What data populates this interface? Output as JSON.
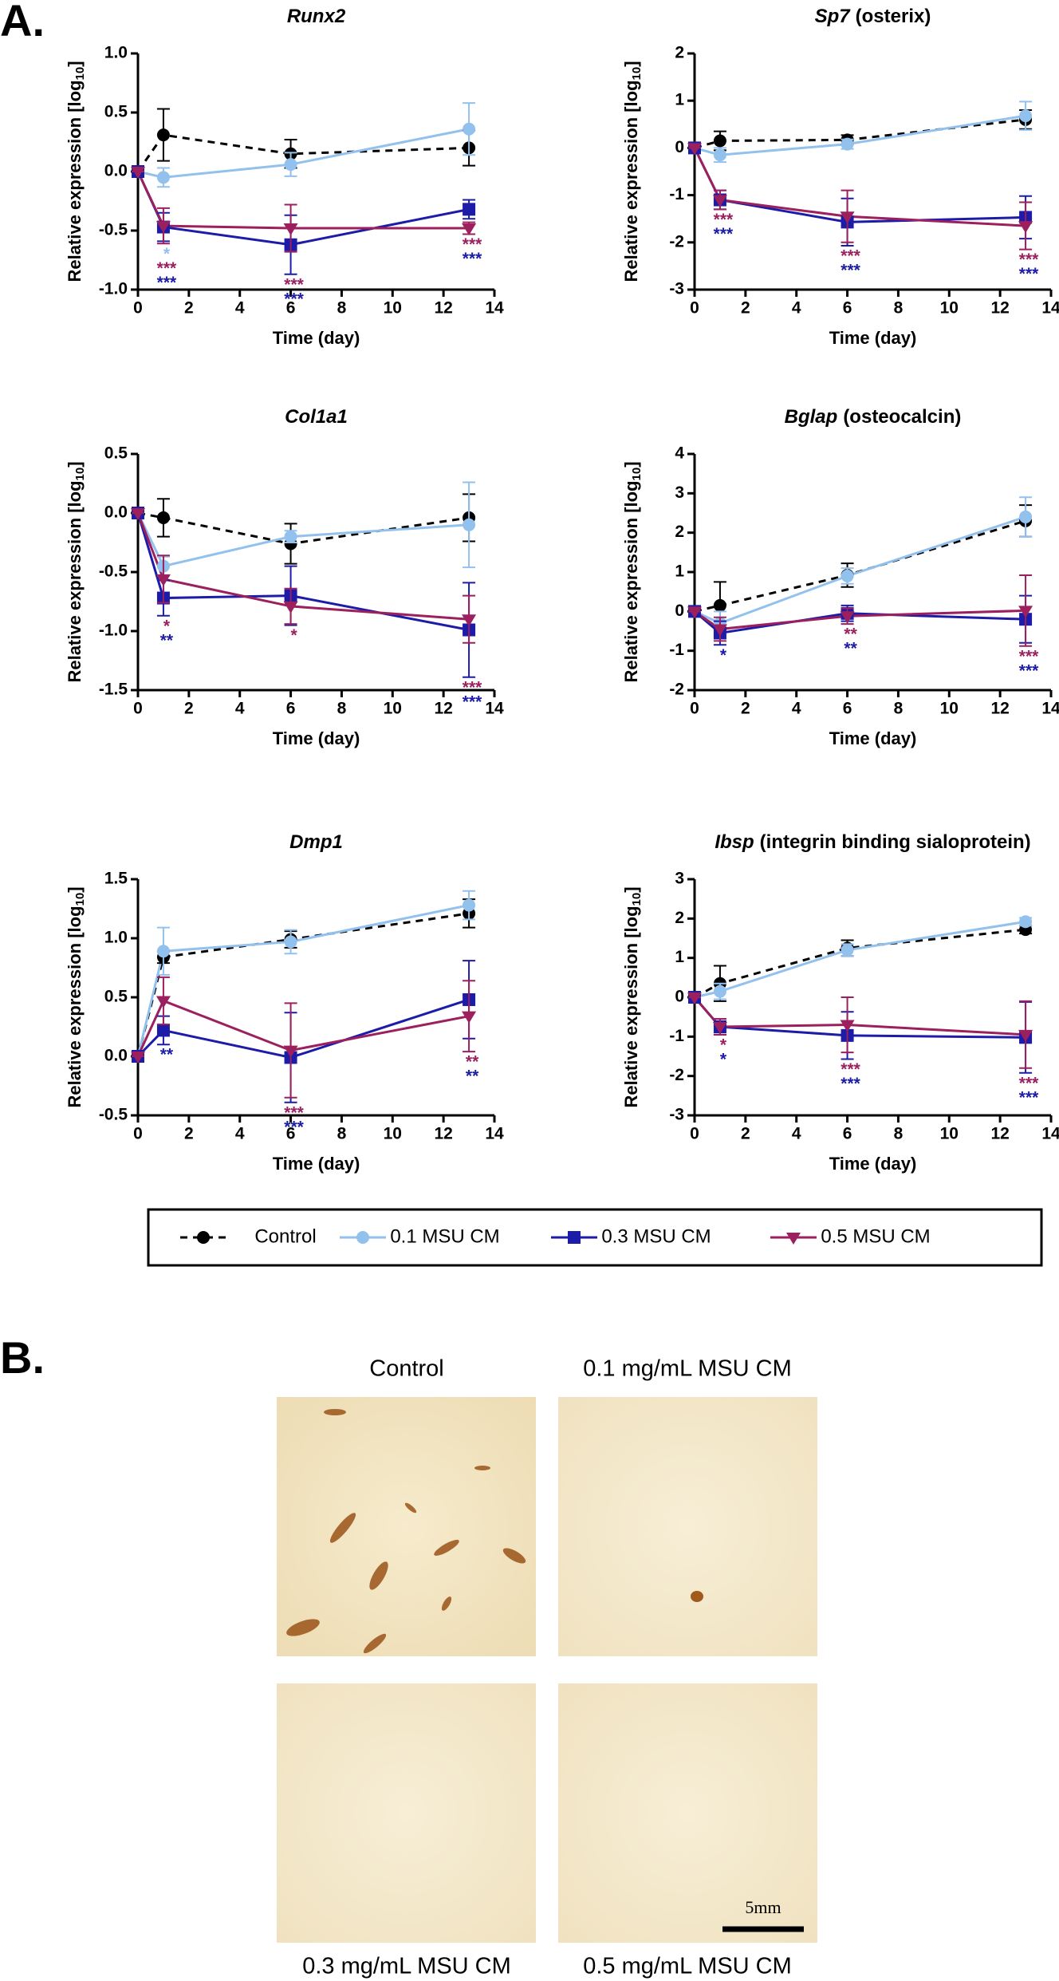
{
  "panel_labels": [
    "A.",
    "B."
  ],
  "chart_data": [
    {
      "type": "line",
      "title": "Runx2",
      "xlabel": "Time (day)",
      "ylabel": "Relative expression [log",
      "ylabel_sub": "10",
      "ylabel_end": "]",
      "x": [
        0,
        1,
        6,
        13
      ],
      "xlim": [
        0,
        14
      ],
      "xticks": [
        0,
        2,
        4,
        6,
        8,
        10,
        12,
        14
      ],
      "ylim": [
        -1,
        1
      ],
      "yticks": [
        {
          "value": -1,
          "label": "-1.0"
        },
        -0.5,
        {
          "value": 0,
          "label": "0.0"
        },
        0.5,
        {
          "value": 1,
          "label": "1.0"
        }
      ],
      "series": [
        {
          "name": "Control",
          "color": "#000000",
          "marker": "circle",
          "line_style": "dashed",
          "values": [
            0,
            0.31,
            0.15,
            0.2
          ],
          "errors": [
            0,
            0.22,
            0.12,
            0.15
          ],
          "significance": [
            null,
            null,
            null,
            null
          ]
        },
        {
          "name": "0.1 MSU CM",
          "color": "#92c1ee",
          "marker": "circle",
          "line_style": "solid",
          "values": [
            0,
            -0.05,
            0.06,
            0.36
          ],
          "errors": [
            0,
            0.08,
            0.1,
            0.22
          ],
          "significance": [
            null,
            "*",
            null,
            null
          ]
        },
        {
          "name": "0.3 MSU CM",
          "color": "#1c1ca8",
          "marker": "square",
          "line_style": "solid",
          "values": [
            0,
            -0.47,
            -0.62,
            -0.32
          ],
          "errors": [
            0,
            0.12,
            0.25,
            0.08
          ],
          "significance": [
            null,
            "***",
            "***",
            "***"
          ]
        },
        {
          "name": "0.5 MSU CM",
          "color": "#9c1f5e",
          "marker": "triangle",
          "line_style": "solid",
          "values": [
            0,
            -0.46,
            -0.48,
            -0.48
          ],
          "errors": [
            0,
            0.15,
            0.2,
            0.05
          ],
          "significance": [
            null,
            "***",
            "***",
            "***"
          ]
        }
      ]
    },
    {
      "type": "line",
      "title": "Sp7",
      "title_suffix": "(osterix)",
      "xlabel": "Time (day)",
      "ylabel": "Relative expression [log",
      "ylabel_sub": "10",
      "ylabel_end": "]",
      "x": [
        0,
        1,
        6,
        13
      ],
      "xlim": [
        0,
        14
      ],
      "xticks": [
        0,
        2,
        4,
        6,
        8,
        10,
        12,
        14
      ],
      "ylim": [
        -3,
        2
      ],
      "yticks": [
        -3,
        -2,
        -1,
        0,
        1,
        2
      ],
      "series": [
        {
          "name": "Control",
          "color": "#000000",
          "marker": "circle",
          "line_style": "dashed",
          "values": [
            0,
            0.15,
            0.17,
            0.6
          ],
          "errors": [
            0,
            0.2,
            0.1,
            0.2
          ],
          "significance": [
            null,
            null,
            null,
            null
          ]
        },
        {
          "name": "0.1 MSU CM",
          "color": "#92c1ee",
          "marker": "circle",
          "line_style": "solid",
          "values": [
            0,
            -0.15,
            0.08,
            0.68
          ],
          "errors": [
            0,
            0.15,
            0.1,
            0.3
          ],
          "significance": [
            null,
            null,
            null,
            null
          ]
        },
        {
          "name": "0.3 MSU CM",
          "color": "#1c1ca8",
          "marker": "square",
          "line_style": "solid",
          "values": [
            0,
            -1.1,
            -1.57,
            -1.47
          ],
          "errors": [
            0,
            0.2,
            0.5,
            0.45
          ],
          "significance": [
            null,
            "***",
            "***",
            "***"
          ]
        },
        {
          "name": "0.5 MSU CM",
          "color": "#9c1f5e",
          "marker": "triangle",
          "line_style": "solid",
          "values": [
            0,
            -1.1,
            -1.45,
            -1.65
          ],
          "errors": [
            0,
            0.2,
            0.55,
            0.5
          ],
          "significance": [
            null,
            "***",
            "***",
            "***"
          ]
        }
      ]
    },
    {
      "type": "line",
      "title": "Col1a1",
      "xlabel": "Time (day)",
      "ylabel": "Relative expression [log",
      "ylabel_sub": "10",
      "ylabel_end": "]",
      "x": [
        0,
        1,
        6,
        13
      ],
      "xlim": [
        0,
        14
      ],
      "xticks": [
        0,
        2,
        4,
        6,
        8,
        10,
        12,
        14
      ],
      "ylim": [
        -1.5,
        0.5
      ],
      "yticks": [
        -1.5,
        {
          "value": -1,
          "label": "-1.0"
        },
        -0.5,
        {
          "value": 0,
          "label": "0.0"
        },
        0.5
      ],
      "series": [
        {
          "name": "Control",
          "color": "#000000",
          "marker": "circle",
          "line_style": "dashed",
          "values": [
            0,
            -0.04,
            -0.26,
            -0.04
          ],
          "errors": [
            0,
            0.16,
            0.17,
            0.2
          ],
          "significance": [
            null,
            null,
            null,
            null
          ]
        },
        {
          "name": "0.1 MSU CM",
          "color": "#92c1ee",
          "marker": "circle",
          "line_style": "solid",
          "values": [
            0,
            -0.45,
            -0.2,
            -0.1
          ],
          "errors": [
            0,
            0.08,
            0.05,
            0.36
          ],
          "significance": [
            null,
            null,
            null,
            null
          ]
        },
        {
          "name": "0.3 MSU CM",
          "color": "#1c1ca8",
          "marker": "square",
          "line_style": "solid",
          "values": [
            0,
            -0.72,
            -0.7,
            -0.99
          ],
          "errors": [
            0,
            0.15,
            0.25,
            0.4
          ],
          "significance": [
            null,
            "**",
            null,
            "***"
          ]
        },
        {
          "name": "0.5 MSU CM",
          "color": "#9c1f5e",
          "marker": "triangle",
          "line_style": "solid",
          "values": [
            0,
            -0.56,
            -0.79,
            -0.9
          ],
          "errors": [
            0,
            0.2,
            0.15,
            0.2
          ],
          "significance": [
            null,
            "*",
            "*",
            "***"
          ]
        }
      ]
    },
    {
      "type": "line",
      "title": "Bglap",
      "title_suffix": "(osteocalcin)",
      "xlabel": "Time (day)",
      "ylabel": "Relative expression [log",
      "ylabel_sub": "10",
      "ylabel_end": "]",
      "x": [
        0,
        1,
        6,
        13
      ],
      "xlim": [
        0,
        14
      ],
      "xticks": [
        0,
        2,
        4,
        6,
        8,
        10,
        12,
        14
      ],
      "ylim": [
        -2,
        4
      ],
      "yticks": [
        -2,
        -1,
        0,
        1,
        2,
        3,
        4
      ],
      "series": [
        {
          "name": "Control",
          "color": "#000000",
          "marker": "circle",
          "line_style": "dashed",
          "values": [
            0,
            0.15,
            0.92,
            2.3
          ],
          "errors": [
            0,
            0.6,
            0.3,
            0.4
          ],
          "significance": [
            null,
            null,
            null,
            null
          ]
        },
        {
          "name": "0.1 MSU CM",
          "color": "#92c1ee",
          "marker": "circle",
          "line_style": "solid",
          "values": [
            0,
            -0.3,
            0.9,
            2.4
          ],
          "errors": [
            0,
            0.3,
            0.2,
            0.5
          ],
          "significance": [
            null,
            null,
            null,
            null
          ]
        },
        {
          "name": "0.3 MSU CM",
          "color": "#1c1ca8",
          "marker": "square",
          "line_style": "solid",
          "values": [
            0,
            -0.55,
            -0.05,
            -0.2
          ],
          "errors": [
            0,
            0.3,
            0.2,
            0.6
          ],
          "significance": [
            null,
            "*",
            "**",
            "***"
          ]
        },
        {
          "name": "0.5 MSU CM",
          "color": "#9c1f5e",
          "marker": "triangle",
          "line_style": "solid",
          "values": [
            0,
            -0.45,
            -0.12,
            0.02
          ],
          "errors": [
            0,
            0.3,
            0.2,
            0.9
          ],
          "significance": [
            null,
            null,
            "**",
            "***"
          ]
        }
      ]
    },
    {
      "type": "line",
      "title": "Dmp1",
      "xlabel": "Time (day)",
      "ylabel": "Relative expression [log",
      "ylabel_sub": "10",
      "ylabel_end": "]",
      "x": [
        0,
        1,
        6,
        13
      ],
      "xlim": [
        0,
        14
      ],
      "xticks": [
        0,
        2,
        4,
        6,
        8,
        10,
        12,
        14
      ],
      "ylim": [
        -0.5,
        1.5
      ],
      "yticks": [
        -0.5,
        {
          "value": 0,
          "label": "0.0"
        },
        0.5,
        {
          "value": 1,
          "label": "1.0"
        },
        1.5
      ],
      "series": [
        {
          "name": "Control",
          "color": "#000000",
          "marker": "circle",
          "line_style": "dashed",
          "values": [
            0,
            0.84,
            0.99,
            1.21
          ],
          "errors": [
            0,
            0.05,
            0.07,
            0.12
          ],
          "significance": [
            null,
            null,
            null,
            null
          ]
        },
        {
          "name": "0.1 MSU CM",
          "color": "#92c1ee",
          "marker": "circle",
          "line_style": "solid",
          "values": [
            0,
            0.89,
            0.97,
            1.28
          ],
          "errors": [
            0,
            0.2,
            0.1,
            0.12
          ],
          "significance": [
            null,
            null,
            null,
            null
          ]
        },
        {
          "name": "0.3 MSU CM",
          "color": "#1c1ca8",
          "marker": "square",
          "line_style": "solid",
          "values": [
            0,
            0.22,
            -0.01,
            0.48
          ],
          "errors": [
            0,
            0.12,
            0.38,
            0.33
          ],
          "significance": [
            null,
            "**",
            "***",
            "**"
          ]
        },
        {
          "name": "0.5 MSU CM",
          "color": "#9c1f5e",
          "marker": "triangle",
          "line_style": "solid",
          "values": [
            0,
            0.47,
            0.05,
            0.34
          ],
          "errors": [
            0,
            0.2,
            0.4,
            0.3
          ],
          "significance": [
            null,
            null,
            "***",
            "**"
          ]
        }
      ]
    },
    {
      "type": "line",
      "title": "Ibsp",
      "title_suffix": "(integrin binding sialoprotein)",
      "xlabel": "Time (day)",
      "ylabel": "Relative expression [log",
      "ylabel_sub": "10",
      "ylabel_end": "]",
      "x": [
        0,
        1,
        6,
        13
      ],
      "xlim": [
        0,
        14
      ],
      "xticks": [
        0,
        2,
        4,
        6,
        8,
        10,
        12,
        14
      ],
      "ylim": [
        -3,
        3
      ],
      "yticks": [
        -3,
        -2,
        -1,
        0,
        1,
        2,
        3
      ],
      "series": [
        {
          "name": "Control",
          "color": "#000000",
          "marker": "circle",
          "line_style": "dashed",
          "values": [
            0,
            0.35,
            1.25,
            1.72
          ],
          "errors": [
            0,
            0.45,
            0.2,
            0.1
          ],
          "significance": [
            null,
            null,
            null,
            null
          ]
        },
        {
          "name": "0.1 MSU CM",
          "color": "#92c1ee",
          "marker": "circle",
          "line_style": "solid",
          "values": [
            0,
            0.15,
            1.2,
            1.92
          ],
          "errors": [
            0,
            0.2,
            0.15,
            0.1
          ],
          "significance": [
            null,
            null,
            null,
            null
          ]
        },
        {
          "name": "0.3 MSU CM",
          "color": "#1c1ca8",
          "marker": "square",
          "line_style": "solid",
          "values": [
            0,
            -0.75,
            -0.97,
            -1.02
          ],
          "errors": [
            0,
            0.2,
            0.6,
            0.9
          ],
          "significance": [
            null,
            "*",
            "***",
            "***"
          ]
        },
        {
          "name": "0.5 MSU CM",
          "color": "#9c1f5e",
          "marker": "triangle",
          "line_style": "solid",
          "values": [
            0,
            -0.75,
            -0.7,
            -0.95
          ],
          "errors": [
            0,
            0.2,
            0.7,
            0.85
          ],
          "significance": [
            null,
            "*",
            "***",
            "***"
          ]
        }
      ]
    }
  ],
  "images": [
    {
      "label": "Control"
    },
    {
      "label": "0.1 mg/mL MSU CM"
    },
    {
      "label": "0.3 mg/mL MSU CM"
    },
    {
      "label": "0.5 mg/mL MSU CM"
    }
  ],
  "scale_bar": "5mm"
}
